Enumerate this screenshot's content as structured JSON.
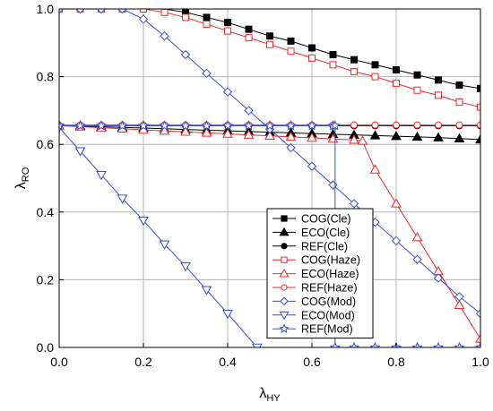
{
  "chart_data": {
    "type": "line",
    "xlim": [
      0.0,
      1.0
    ],
    "ylim": [
      0.0,
      1.0
    ],
    "x_ticks": [
      "0.0",
      "0.2",
      "0.4",
      "0.6",
      "0.8",
      "1.0"
    ],
    "y_ticks": [
      "0.0",
      "0.2",
      "0.4",
      "0.6",
      "0.8",
      "1.0"
    ],
    "xlabel": {
      "main": "λ",
      "sub": "HY"
    },
    "ylabel": {
      "main": "λ",
      "sub": "RO"
    },
    "grid": true,
    "legend_position": "bottom-center",
    "series": [
      {
        "name": "COG(Cle)",
        "color": "#000000",
        "marker": "square-filled",
        "x": [
          0.0,
          0.05,
          0.1,
          0.15,
          0.2,
          0.25,
          0.3,
          0.35,
          0.4,
          0.45,
          0.5,
          0.55,
          0.6,
          0.65,
          0.7,
          0.75,
          0.8,
          0.85,
          0.9,
          0.95,
          1.0
        ],
        "y": [
          1.0,
          1.0,
          1.0,
          1.0,
          1.0,
          1.0,
          0.99,
          0.975,
          0.96,
          0.94,
          0.92,
          0.905,
          0.885,
          0.865,
          0.85,
          0.835,
          0.82,
          0.805,
          0.79,
          0.775,
          0.765
        ]
      },
      {
        "name": "ECO(Cle)",
        "color": "#000000",
        "marker": "triangle-up-filled",
        "x": [
          0.0,
          0.05,
          0.1,
          0.15,
          0.2,
          0.25,
          0.3,
          0.35,
          0.4,
          0.45,
          0.5,
          0.55,
          0.6,
          0.65,
          0.7,
          0.75,
          0.8,
          0.85,
          0.9,
          0.95,
          1.0
        ],
        "y": [
          0.655,
          0.654,
          0.652,
          0.65,
          0.648,
          0.646,
          0.644,
          0.642,
          0.64,
          0.638,
          0.636,
          0.634,
          0.632,
          0.63,
          0.628,
          0.626,
          0.624,
          0.622,
          0.62,
          0.617,
          0.614
        ]
      },
      {
        "name": "REF(Cle)",
        "color": "#000000",
        "marker": "circle-filled",
        "x": [
          0.0,
          0.05,
          0.1,
          0.15,
          0.2,
          0.25,
          0.3,
          0.35,
          0.4,
          0.45,
          0.5,
          0.55,
          0.6,
          0.65,
          0.7,
          0.75,
          0.8,
          0.85,
          0.9,
          0.95,
          1.0
        ],
        "y": [
          0.655,
          0.655,
          0.655,
          0.655,
          0.655,
          0.655,
          0.655,
          0.655,
          0.655,
          0.655,
          0.655,
          0.655,
          0.655,
          0.655,
          0.655,
          0.655,
          0.655,
          0.655,
          0.655,
          0.655,
          0.655
        ]
      },
      {
        "name": "COG(Haze)",
        "color": "#ee2b2b",
        "marker": "square-open",
        "x": [
          0.0,
          0.05,
          0.1,
          0.15,
          0.2,
          0.25,
          0.3,
          0.35,
          0.4,
          0.45,
          0.5,
          0.55,
          0.6,
          0.65,
          0.7,
          0.75,
          0.8,
          0.85,
          0.9,
          0.95,
          1.0
        ],
        "y": [
          1.0,
          1.0,
          1.0,
          1.0,
          1.0,
          0.99,
          0.975,
          0.955,
          0.935,
          0.915,
          0.895,
          0.875,
          0.855,
          0.835,
          0.815,
          0.8,
          0.78,
          0.76,
          0.745,
          0.725,
          0.71
        ]
      },
      {
        "name": "ECO(Haze)",
        "color": "#ee2b2b",
        "marker": "triangle-up-open",
        "x": [
          0.0,
          0.05,
          0.1,
          0.15,
          0.2,
          0.25,
          0.3,
          0.35,
          0.4,
          0.45,
          0.5,
          0.55,
          0.6,
          0.65,
          0.7,
          0.72,
          0.75,
          0.8,
          0.85,
          0.9,
          0.95,
          1.0
        ],
        "y": [
          0.655,
          0.652,
          0.649,
          0.646,
          0.643,
          0.64,
          0.637,
          0.634,
          0.631,
          0.628,
          0.625,
          0.622,
          0.619,
          0.616,
          0.613,
          0.61,
          0.525,
          0.425,
          0.325,
          0.225,
          0.125,
          0.025
        ]
      },
      {
        "name": "REF(Haze)",
        "color": "#ee2b2b",
        "marker": "circle-open",
        "x": [
          0.0,
          0.05,
          0.1,
          0.15,
          0.2,
          0.25,
          0.3,
          0.35,
          0.4,
          0.45,
          0.5,
          0.55,
          0.6,
          0.65,
          0.7,
          0.75,
          0.8,
          0.85,
          0.9,
          0.95,
          1.0
        ],
        "y": [
          0.657,
          0.657,
          0.657,
          0.657,
          0.657,
          0.657,
          0.657,
          0.657,
          0.657,
          0.657,
          0.657,
          0.657,
          0.657,
          0.657,
          0.657,
          0.657,
          0.657,
          0.657,
          0.657,
          0.657,
          0.657
        ]
      },
      {
        "name": "COG(Mod)",
        "color": "#3a4fd4",
        "marker": "diamond-open",
        "x": [
          0.0,
          0.05,
          0.1,
          0.15,
          0.2,
          0.25,
          0.3,
          0.35,
          0.4,
          0.45,
          0.5,
          0.55,
          0.6,
          0.65,
          0.7,
          0.75,
          0.8,
          0.85,
          0.9,
          0.95,
          1.0
        ],
        "y": [
          1.0,
          1.0,
          1.0,
          1.0,
          0.97,
          0.92,
          0.865,
          0.81,
          0.755,
          0.7,
          0.645,
          0.59,
          0.535,
          0.48,
          0.425,
          0.37,
          0.315,
          0.26,
          0.205,
          0.15,
          0.1
        ]
      },
      {
        "name": "ECO(Mod)",
        "color": "#3a4fd4",
        "marker": "triangle-down-open",
        "x": [
          0.0,
          0.05,
          0.1,
          0.15,
          0.2,
          0.25,
          0.3,
          0.35,
          0.4,
          0.47
        ],
        "y": [
          0.65,
          0.58,
          0.51,
          0.44,
          0.375,
          0.305,
          0.24,
          0.17,
          0.1,
          0.0
        ]
      },
      {
        "name": "REF(Mod)",
        "color": "#3a4fd4",
        "marker": "star-open",
        "x": [
          0.0,
          0.05,
          0.1,
          0.15,
          0.2,
          0.25,
          0.3,
          0.35,
          0.4,
          0.45,
          0.5,
          0.55,
          0.6,
          0.65,
          0.655,
          0.655,
          0.7,
          0.75,
          0.8,
          0.85,
          0.9,
          0.95,
          1.0
        ],
        "y": [
          0.655,
          0.655,
          0.655,
          0.655,
          0.655,
          0.655,
          0.655,
          0.655,
          0.655,
          0.655,
          0.655,
          0.655,
          0.655,
          0.655,
          0.655,
          0.0,
          0.0,
          0.0,
          0.0,
          0.0,
          0.0,
          0.0,
          0.0
        ]
      }
    ]
  }
}
